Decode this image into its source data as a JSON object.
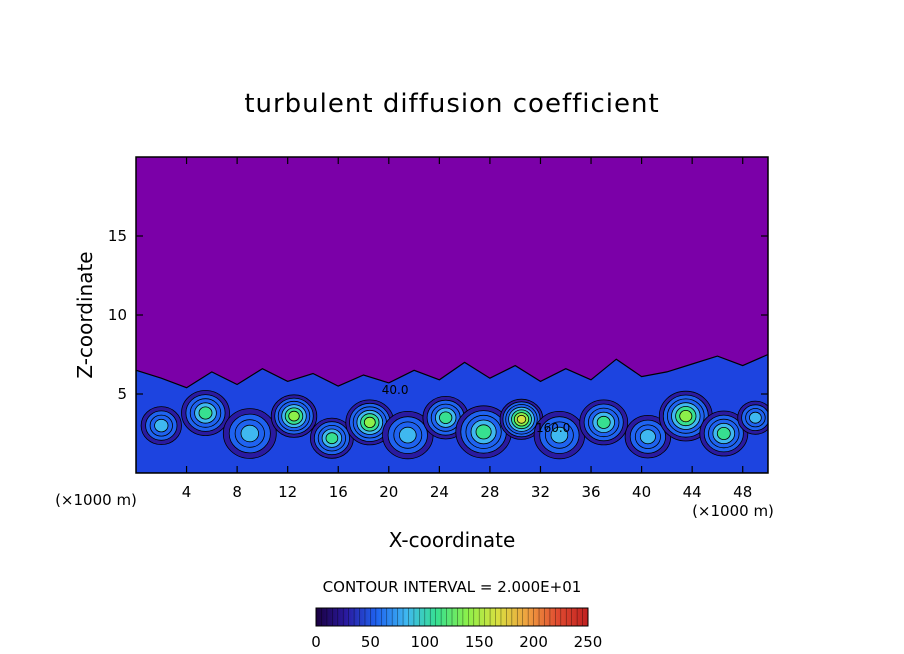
{
  "chart_data": {
    "type": "heatmap",
    "title": "turbulent diffusion coefficient",
    "xlabel": "X-coordinate",
    "ylabel": "Z-coordinate",
    "x_unit_left": "(×1000 m)",
    "x_unit_right": "(×1000 m)",
    "xlim": [
      0,
      50
    ],
    "ylim": [
      0,
      20
    ],
    "x_ticks": [
      4,
      8,
      12,
      16,
      20,
      24,
      28,
      32,
      36,
      40,
      44,
      48
    ],
    "y_ticks": [
      5,
      10,
      15
    ],
    "contour_interval_text": "CONTOUR INTERVAL = 2.000E+01",
    "colorbar": {
      "min": 0,
      "max": 250,
      "ticks": [
        0,
        50,
        100,
        150,
        200,
        250
      ],
      "colors": [
        "#1a0040",
        "#2a1aa0",
        "#1f63f0",
        "#3fb8f0",
        "#37e090",
        "#8cf04a",
        "#d8e040",
        "#f0a040",
        "#e04a30",
        "#c02020"
      ]
    },
    "background_color": "#7b00a8",
    "contour_labels": [
      {
        "x": 20.5,
        "z": 5.0,
        "text": "40.0"
      },
      {
        "x": 33.0,
        "z": 2.6,
        "text": "160.0"
      }
    ],
    "turbulent_layer_top_profile": [
      {
        "x": 0,
        "z": 6.5
      },
      {
        "x": 2,
        "z": 6.0
      },
      {
        "x": 4,
        "z": 5.4
      },
      {
        "x": 6,
        "z": 6.4
      },
      {
        "x": 8,
        "z": 5.6
      },
      {
        "x": 10,
        "z": 6.6
      },
      {
        "x": 12,
        "z": 5.8
      },
      {
        "x": 14,
        "z": 6.3
      },
      {
        "x": 16,
        "z": 5.5
      },
      {
        "x": 18,
        "z": 6.2
      },
      {
        "x": 20,
        "z": 5.7
      },
      {
        "x": 22,
        "z": 6.5
      },
      {
        "x": 24,
        "z": 5.9
      },
      {
        "x": 26,
        "z": 7.0
      },
      {
        "x": 28,
        "z": 6.0
      },
      {
        "x": 30,
        "z": 6.8
      },
      {
        "x": 32,
        "z": 5.8
      },
      {
        "x": 34,
        "z": 6.6
      },
      {
        "x": 36,
        "z": 5.9
      },
      {
        "x": 38,
        "z": 7.2
      },
      {
        "x": 40,
        "z": 6.1
      },
      {
        "x": 42,
        "z": 6.4
      },
      {
        "x": 44,
        "z": 6.9
      },
      {
        "x": 46,
        "z": 7.4
      },
      {
        "x": 48,
        "z": 6.8
      },
      {
        "x": 50,
        "z": 7.5
      }
    ],
    "eddies": [
      {
        "x": 2.0,
        "z": 3.0,
        "r": 1.6,
        "v": 60
      },
      {
        "x": 5.5,
        "z": 3.8,
        "r": 1.9,
        "v": 90
      },
      {
        "x": 9.0,
        "z": 2.5,
        "r": 2.1,
        "v": 70
      },
      {
        "x": 12.5,
        "z": 3.6,
        "r": 1.8,
        "v": 110
      },
      {
        "x": 15.5,
        "z": 2.2,
        "r": 1.7,
        "v": 80
      },
      {
        "x": 18.5,
        "z": 3.2,
        "r": 1.9,
        "v": 100
      },
      {
        "x": 21.5,
        "z": 2.4,
        "r": 2.0,
        "v": 70
      },
      {
        "x": 24.5,
        "z": 3.5,
        "r": 1.8,
        "v": 90
      },
      {
        "x": 27.5,
        "z": 2.6,
        "r": 2.2,
        "v": 85
      },
      {
        "x": 30.5,
        "z": 3.4,
        "r": 1.7,
        "v": 120
      },
      {
        "x": 33.5,
        "z": 2.4,
        "r": 2.0,
        "v": 75
      },
      {
        "x": 37.0,
        "z": 3.2,
        "r": 1.9,
        "v": 95
      },
      {
        "x": 40.5,
        "z": 2.3,
        "r": 1.8,
        "v": 70
      },
      {
        "x": 43.5,
        "z": 3.6,
        "r": 2.1,
        "v": 105
      },
      {
        "x": 46.5,
        "z": 2.5,
        "r": 1.9,
        "v": 85
      },
      {
        "x": 49.0,
        "z": 3.5,
        "r": 1.4,
        "v": 65
      }
    ]
  }
}
